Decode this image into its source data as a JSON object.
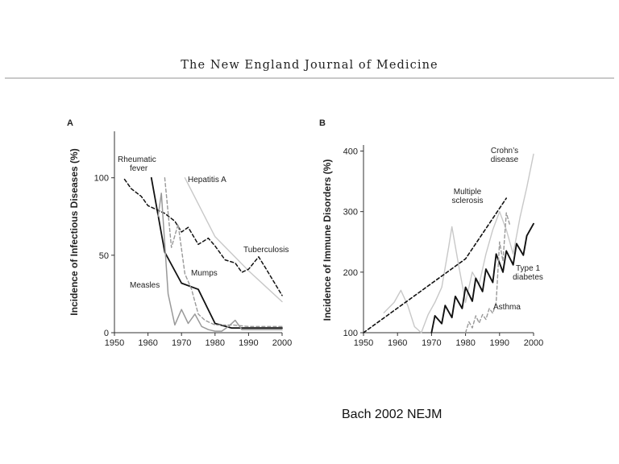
{
  "header": {
    "journal_title": "The New England Journal of Medicine"
  },
  "caption": "Bach 2002 NEJM",
  "chart_data": [
    {
      "type": "line",
      "panel": "A",
      "ylabel": "Incidence of Infectious Diseases (%)",
      "xlabel": "",
      "xlim": [
        1950,
        2000
      ],
      "ylim": [
        0,
        130
      ],
      "xticks": [
        1950,
        1960,
        1970,
        1980,
        1990,
        2000
      ],
      "yticks": [
        0,
        50,
        100
      ],
      "grid": false,
      "series": [
        {
          "name": "Rheumatic fever",
          "label_lines": [
            "Rheumatic",
            "fever"
          ],
          "color": "#111111",
          "dash": "solid",
          "width": 1.8,
          "x": [
            1961,
            1965,
            1970,
            1975,
            1980,
            1985,
            2000
          ],
          "y": [
            100,
            52,
            32,
            28,
            6,
            3,
            3
          ]
        },
        {
          "name": "Hepatitis A",
          "label_lines": [
            "Hepatitis A"
          ],
          "color": "#c8c8c8",
          "dash": "solid",
          "width": 1.4,
          "x": [
            1971,
            1980,
            1990,
            1995,
            2000
          ],
          "y": [
            100,
            62,
            40,
            30,
            20
          ]
        },
        {
          "name": "Tuberculosis",
          "label_lines": [
            "Tuberculosis"
          ],
          "color": "#111111",
          "dash": "dashed",
          "width": 1.5,
          "x": [
            1953,
            1955,
            1958,
            1960,
            1965,
            1968,
            1970,
            1972,
            1975,
            1978,
            1980,
            1983,
            1986,
            1988,
            1990,
            1993,
            1995,
            2000
          ],
          "y": [
            99,
            93,
            88,
            82,
            77,
            72,
            65,
            68,
            57,
            61,
            56,
            47,
            45,
            39,
            41,
            49,
            42,
            24
          ]
        },
        {
          "name": "Measles",
          "label_lines": [
            "Measles"
          ],
          "color": "#999999",
          "dash": "solid",
          "width": 1.5,
          "x": [
            1963,
            1964,
            1966,
            1968,
            1970,
            1972,
            1974,
            1976,
            1978,
            1980,
            1982,
            1984,
            1986,
            1988,
            1990,
            2000
          ],
          "y": [
            75,
            90,
            25,
            5,
            15,
            6,
            12,
            4,
            2,
            1,
            1,
            4,
            8,
            2,
            2,
            2
          ]
        },
        {
          "name": "Mumps",
          "label_lines": [
            "Mumps"
          ],
          "color": "#999999",
          "dash": "dashed",
          "width": 1.4,
          "x": [
            1965,
            1967,
            1969,
            1971,
            1973,
            1975,
            1977,
            1980,
            1985,
            1990,
            2000
          ],
          "y": [
            100,
            55,
            70,
            38,
            28,
            12,
            8,
            5,
            5,
            4,
            4
          ]
        }
      ],
      "annotations": [
        "Rheumatic",
        "fever",
        "Hepatitis A",
        "Tuberculosis",
        "Measles",
        "Mumps"
      ]
    },
    {
      "type": "line",
      "panel": "B",
      "ylabel": "Incidence of Immune Disorders (%)",
      "xlabel": "",
      "xlim": [
        1950,
        2000
      ],
      "ylim": [
        100,
        410
      ],
      "xticks": [
        1950,
        1960,
        1970,
        1980,
        1990,
        2000
      ],
      "yticks": [
        100,
        200,
        300,
        400
      ],
      "grid": false,
      "series": [
        {
          "name": "Crohn's disease",
          "label_lines": [
            "Crohn’s",
            "disease"
          ],
          "color": "#c8c8c8",
          "dash": "solid",
          "width": 1.4,
          "x": [
            1956,
            1959,
            1961,
            1963,
            1965,
            1967,
            1969,
            1971,
            1973,
            1975,
            1976,
            1978,
            1980,
            1982,
            1984,
            1986,
            1988,
            1990,
            1992,
            1994,
            1996,
            1998,
            2000
          ],
          "y": [
            133,
            150,
            170,
            145,
            110,
            100,
            130,
            150,
            175,
            240,
            275,
            210,
            150,
            200,
            180,
            230,
            270,
            300,
            270,
            230,
            290,
            340,
            395
          ]
        },
        {
          "name": "Multiple sclerosis",
          "label_lines": [
            "Multiple",
            "sclerosis"
          ],
          "color": "#111111",
          "dash": "dashed",
          "width": 1.6,
          "x": [
            1950,
            1980,
            1992
          ],
          "y": [
            100,
            222,
            322
          ]
        },
        {
          "name": "Type 1 diabetes",
          "label_lines": [
            "Type 1",
            "diabetes"
          ],
          "color": "#111111",
          "dash": "solid",
          "width": 1.9,
          "x": [
            1970,
            1971,
            1973,
            1974,
            1976,
            1977,
            1979,
            1980,
            1982,
            1983,
            1985,
            1986,
            1988,
            1989,
            1991,
            1992,
            1994,
            1995,
            1997,
            1998,
            2000
          ],
          "y": [
            100,
            128,
            115,
            145,
            125,
            160,
            140,
            175,
            152,
            190,
            168,
            205,
            183,
            230,
            200,
            235,
            212,
            247,
            228,
            260,
            280
          ]
        },
        {
          "name": "Asthma",
          "label_lines": [
            "Asthma"
          ],
          "color": "#999999",
          "dash": "dashed",
          "width": 1.4,
          "x": [
            1980,
            1981,
            1982,
            1983,
            1984,
            1985,
            1986,
            1987,
            1988,
            1989,
            1990,
            1991,
            1992,
            1993
          ],
          "y": [
            100,
            118,
            108,
            128,
            116,
            130,
            122,
            140,
            132,
            150,
            250,
            218,
            298,
            278
          ]
        }
      ],
      "annotations": [
        "Crohn’s",
        "disease",
        "Multiple",
        "sclerosis",
        "Type 1",
        "diabetes",
        "Asthma"
      ]
    }
  ]
}
